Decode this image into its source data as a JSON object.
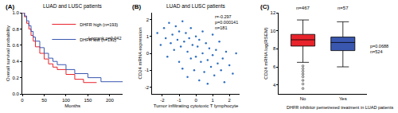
{
  "chart_data": [
    {
      "type": "line",
      "panel": "(A)",
      "title": "LUAD and LUSC patients",
      "x_label": "Months",
      "y_label": "Overall survival probability",
      "line_style": "step",
      "legend": "upper right",
      "annotations": [
        "Logrank p=0.042"
      ],
      "series": [
        {
          "name": "DHFR high (n=193)",
          "color": "#e8232b",
          "x": [
            0,
            5,
            10,
            15,
            20,
            25,
            30,
            40,
            50,
            60,
            70,
            80,
            100,
            120,
            140,
            170
          ],
          "values": [
            1,
            0.95,
            0.87,
            0.8,
            0.72,
            0.65,
            0.58,
            0.5,
            0.43,
            0.37,
            0.33,
            0.3,
            0.24,
            0.18,
            0.14,
            0.14
          ]
        },
        {
          "name": "DHFR low (n=192)",
          "color": "#3a57b0",
          "x": [
            0,
            5,
            10,
            15,
            20,
            25,
            30,
            40,
            50,
            60,
            70,
            80,
            100,
            120,
            150,
            180,
            230
          ],
          "values": [
            1,
            0.96,
            0.9,
            0.84,
            0.77,
            0.7,
            0.65,
            0.57,
            0.5,
            0.44,
            0.4,
            0.36,
            0.3,
            0.25,
            0.2,
            0.15,
            0.15
          ]
        }
      ],
      "xlim": [
        0,
        230
      ],
      "xticks": [
        0,
        50,
        100,
        150,
        200
      ],
      "ylim": [
        0,
        1
      ],
      "yticks": [
        {
          "value": 0,
          "label": "0.0"
        },
        0.2,
        0.4,
        0.6,
        0.8,
        {
          "value": 1,
          "label": "1.0"
        }
      ]
    },
    {
      "type": "scatter",
      "panel": "(B)",
      "title": "LUAD and LUSC patients",
      "x_label": "Tumor infiltrating cytotoxic T lymphocyte",
      "y_label": "CD24 mRNA expression",
      "color": "#2e6fc0",
      "marker": "circle",
      "annotations": [
        "r=-0.297",
        "p=0.000141",
        "n=181"
      ],
      "x": [
        -2.3,
        -2.1,
        -1.9,
        -1.8,
        -1.7,
        -1.6,
        -1.5,
        -1.4,
        -1.3,
        -1.2,
        -1.1,
        -1.0,
        -1.0,
        -0.9,
        -0.8,
        -0.8,
        -0.7,
        -0.6,
        -0.5,
        -0.5,
        -0.4,
        -0.3,
        -0.3,
        -0.2,
        -0.1,
        0.0,
        0.0,
        0.1,
        0.2,
        0.2,
        0.3,
        0.4,
        0.4,
        0.5,
        0.6,
        0.7,
        0.7,
        0.8,
        0.9,
        1.0,
        1.0,
        1.1,
        1.2,
        1.3,
        1.4,
        1.5,
        1.6,
        1.7,
        1.8,
        2.0,
        2.2,
        2.4
      ],
      "values": [
        1.2,
        0.5,
        1.5,
        0.9,
        -0.2,
        1.8,
        0.6,
        1.1,
        0.2,
        1.6,
        0.8,
        -0.5,
        1.3,
        0.4,
        1.9,
        -0.9,
        0.7,
        1.2,
        0.1,
        -1.4,
        0.9,
        1.5,
        -0.3,
        0.5,
        -1.0,
        1.0,
        -0.2,
        0.4,
        -1.6,
        0.8,
        -0.5,
        1.3,
        0.0,
        -1.1,
        0.6,
        -0.4,
        -1.8,
        0.3,
        -0.8,
        1.1,
        -0.1,
        -1.3,
        0.2,
        -0.6,
        0.7,
        -1.0,
        -0.3,
        -1.7,
        0.1,
        -0.7,
        -1.2,
        0.0
      ],
      "xlim": [
        -2.6,
        2.6
      ],
      "xticks": [
        -2,
        -1,
        0,
        1,
        2
      ],
      "ylim": [
        -2.4,
        2.4
      ],
      "yticks": [
        -2,
        -1,
        0,
        1,
        2
      ]
    },
    {
      "type": "box",
      "panel": "(C)",
      "x_label": "DHFR inhibitor pemetrexed treatment in LUAD patients",
      "y_label": "CD24 mRNA log(RSEM)",
      "categories": [
        "No",
        "Yes"
      ],
      "category_notes": [
        "n=467",
        "n=57"
      ],
      "boxes": [
        {
          "color": "#e8232b",
          "q1": 8.3,
          "median": 9.0,
          "q3": 9.6,
          "lower": 6.5,
          "upper": 11.2,
          "outliers": [
            6.1,
            5.8,
            5.5,
            5.2,
            4.9,
            4.5,
            4.1,
            3.6
          ]
        },
        {
          "color": "#3a57b0",
          "q1": 7.8,
          "median": 8.7,
          "q3": 9.3,
          "lower": 6.0,
          "upper": 11.0,
          "outliers": []
        }
      ],
      "annotations": [
        "p=0.0688",
        "n=524"
      ],
      "ylim": [
        3,
        12
      ],
      "yticks": [
        4,
        6,
        8,
        10,
        12
      ]
    }
  ]
}
